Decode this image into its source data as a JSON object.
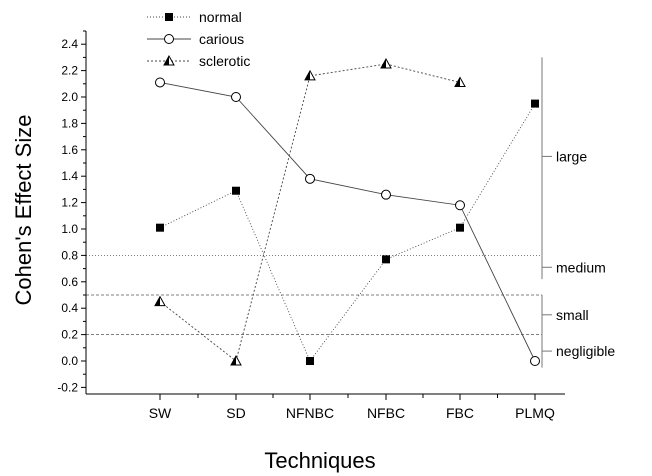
{
  "chart_data": {
    "type": "line",
    "title": "",
    "xlabel": "Techniques",
    "ylabel": "Cohen's Effect Size",
    "categories": [
      "SW",
      "SD",
      "NFNBC",
      "NFBC",
      "FBC",
      "PLMQ"
    ],
    "ylim": [
      -0.25,
      2.5
    ],
    "yticks": [
      "-0.2",
      "0.0",
      "0.2",
      "0.4",
      "0.6",
      "0.8",
      "1.0",
      "1.2",
      "1.4",
      "1.6",
      "1.8",
      "2.0",
      "2.2",
      "2.4"
    ],
    "series": [
      {
        "name": "normal",
        "marker": "square",
        "line": "dotted",
        "values": [
          1.01,
          1.29,
          0.0,
          0.77,
          1.01,
          1.95
        ]
      },
      {
        "name": "carious",
        "marker": "circle",
        "line": "solid",
        "values": [
          2.11,
          2.0,
          1.38,
          1.26,
          1.18,
          0.0
        ]
      },
      {
        "name": "sclerotic",
        "marker": "triangle",
        "line": "dashed",
        "values": [
          0.45,
          0.0,
          2.16,
          2.25,
          2.11,
          null
        ]
      }
    ],
    "thresholds": [
      {
        "value": 0.2,
        "style": "dashed"
      },
      {
        "value": 0.5,
        "style": "dashed"
      },
      {
        "value": 0.8,
        "style": "dotted"
      }
    ],
    "bands": [
      {
        "label": "negligible",
        "from": -0.05,
        "to": 0.2
      },
      {
        "label": "small",
        "from": 0.2,
        "to": 0.5
      },
      {
        "label": "medium",
        "from": 0.62,
        "to": 0.8
      },
      {
        "label": "large",
        "from": 0.8,
        "to": 2.3
      }
    ],
    "legend_position": "top-left",
    "grid": false
  }
}
